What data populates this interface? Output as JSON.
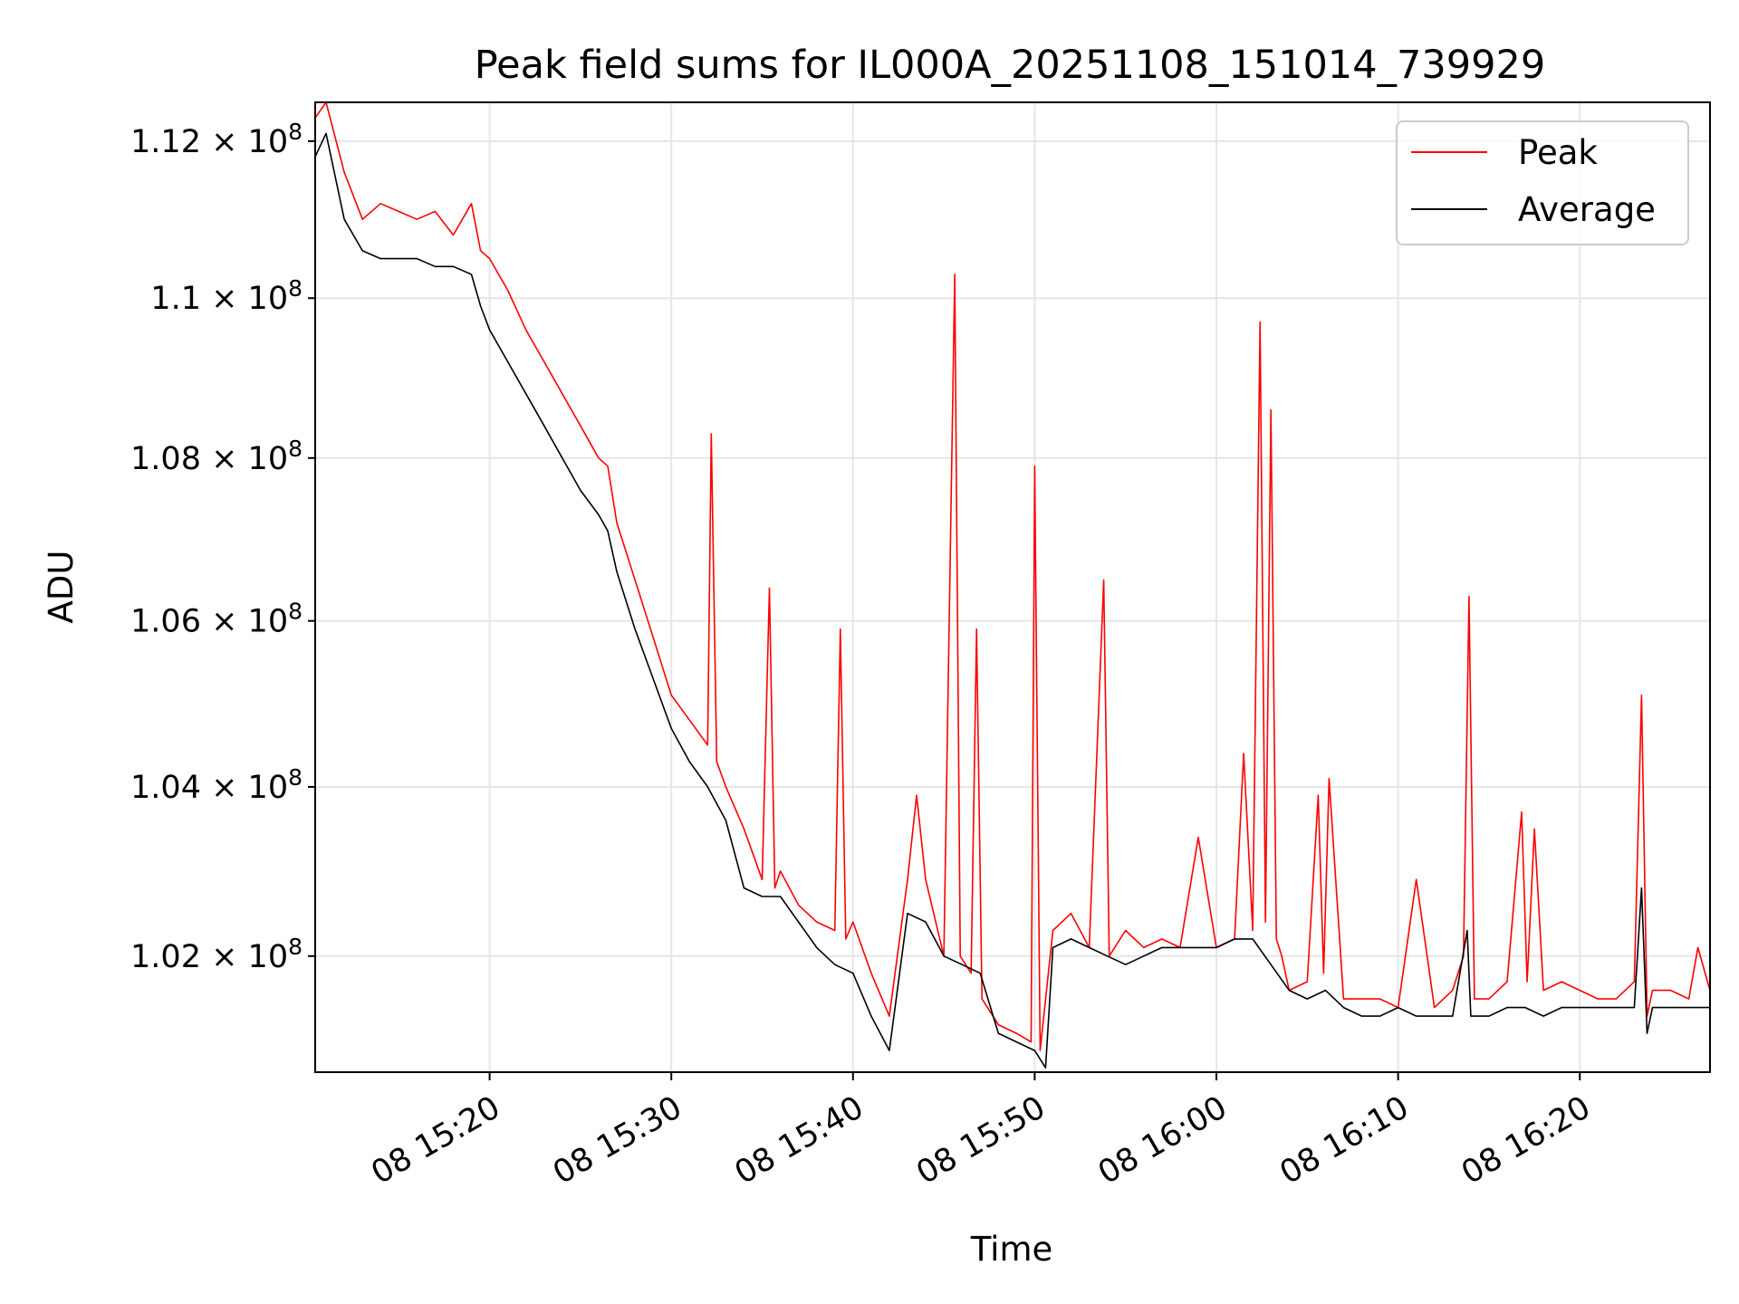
{
  "chart_data": {
    "type": "line",
    "title": "Peak field sums for IL000A_20251108_151014_739929",
    "xlabel": "Time",
    "ylabel": "ADU",
    "y_scale": "log",
    "grid": true,
    "legend_position": "top-right",
    "xlim": [
      "08 15:10:24",
      "08 16:27:10"
    ],
    "ylim": [
      100650000,
      112500000
    ],
    "x_ticks": [
      "08 15:20",
      "08 15:30",
      "08 15:40",
      "08 15:50",
      "08 16:00",
      "08 16:10",
      "08 16:20"
    ],
    "y_ticks": [
      {
        "value": 112000000,
        "mantissa": "1.12",
        "base": "10",
        "exp": "8"
      },
      {
        "value": 110000000,
        "mantissa": "1.1",
        "base": "10",
        "exp": "8"
      },
      {
        "value": 108000000,
        "mantissa": "1.08",
        "base": "10",
        "exp": "8"
      },
      {
        "value": 106000000,
        "mantissa": "1.06",
        "base": "10",
        "exp": "8"
      },
      {
        "value": 104000000,
        "mantissa": "1.04",
        "base": "10",
        "exp": "8"
      },
      {
        "value": 102000000,
        "mantissa": "1.02",
        "base": "10",
        "exp": "8"
      }
    ],
    "series": [
      {
        "name": "Peak",
        "color": "#ff0000",
        "x": [
          "08 15:10:24",
          "08 15:11:00",
          "08 15:12:00",
          "08 15:13:00",
          "08 15:14:00",
          "08 15:15:00",
          "08 15:16:00",
          "08 15:17:00",
          "08 15:18:00",
          "08 15:19:00",
          "08 15:19:30",
          "08 15:20:00",
          "08 15:21:00",
          "08 15:22:00",
          "08 15:23:00",
          "08 15:24:00",
          "08 15:25:00",
          "08 15:26:00",
          "08 15:26:30",
          "08 15:27:00",
          "08 15:28:00",
          "08 15:29:00",
          "08 15:30:00",
          "08 15:31:00",
          "08 15:32:00",
          "08 15:32:12",
          "08 15:32:30",
          "08 15:33:00",
          "08 15:34:00",
          "08 15:35:00",
          "08 15:35:24",
          "08 15:35:42",
          "08 15:36:00",
          "08 15:37:00",
          "08 15:38:00",
          "08 15:39:00",
          "08 15:39:18",
          "08 15:39:36",
          "08 15:40:00",
          "08 15:41:00",
          "08 15:42:00",
          "08 15:43:00",
          "08 15:43:30",
          "08 15:44:00",
          "08 15:45:00",
          "08 15:45:36",
          "08 15:45:54",
          "08 15:46:30",
          "08 15:46:48",
          "08 15:47:06",
          "08 15:48:00",
          "08 15:49:00",
          "08 15:49:48",
          "08 15:50:00",
          "08 15:50:18",
          "08 15:51:00",
          "08 15:52:00",
          "08 15:53:00",
          "08 15:53:48",
          "08 15:54:06",
          "08 15:55:00",
          "08 15:56:00",
          "08 15:57:00",
          "08 15:58:00",
          "08 15:59:00",
          "08 16:00:00",
          "08 16:01:00",
          "08 16:01:30",
          "08 16:02:00",
          "08 16:02:24",
          "08 16:02:42",
          "08 16:03:00",
          "08 16:03:18",
          "08 16:03:36",
          "08 16:04:00",
          "08 16:05:00",
          "08 16:05:36",
          "08 16:05:54",
          "08 16:06:12",
          "08 16:07:00",
          "08 16:08:00",
          "08 16:09:00",
          "08 16:10:00",
          "08 16:11:00",
          "08 16:12:00",
          "08 16:13:00",
          "08 16:13:36",
          "08 16:13:54",
          "08 16:14:12",
          "08 16:15:00",
          "08 16:16:00",
          "08 16:16:48",
          "08 16:17:06",
          "08 16:17:30",
          "08 16:18:00",
          "08 16:19:00",
          "08 16:20:00",
          "08 16:21:00",
          "08 16:22:00",
          "08 16:23:00",
          "08 16:23:24",
          "08 16:23:42",
          "08 16:24:00",
          "08 16:25:00",
          "08 16:26:00",
          "08 16:26:30",
          "08 16:27:10"
        ],
        "values": [
          112300000,
          112500000,
          111600000,
          111000000,
          111200000,
          111100000,
          111000000,
          111100000,
          110800000,
          111200000,
          110600000,
          110500000,
          110100000,
          109600000,
          109200000,
          108800000,
          108400000,
          108000000,
          107900000,
          107200000,
          106500000,
          105800000,
          105100000,
          104800000,
          104500000,
          108300000,
          104300000,
          104000000,
          103500000,
          102900000,
          106400000,
          102800000,
          103000000,
          102600000,
          102400000,
          102300000,
          105900000,
          102200000,
          102400000,
          101800000,
          101300000,
          102900000,
          103900000,
          102900000,
          102000000,
          110300000,
          102000000,
          101800000,
          105900000,
          101500000,
          101200000,
          101100000,
          101000000,
          107900000,
          100900000,
          102300000,
          102500000,
          102100000,
          106500000,
          102000000,
          102300000,
          102100000,
          102200000,
          102100000,
          103400000,
          102100000,
          102200000,
          104400000,
          102300000,
          109700000,
          102400000,
          108600000,
          102200000,
          102000000,
          101600000,
          101700000,
          103900000,
          101800000,
          104100000,
          101500000,
          101500000,
          101500000,
          101400000,
          102900000,
          101400000,
          101600000,
          102000000,
          106300000,
          101500000,
          101500000,
          101700000,
          103700000,
          101700000,
          103500000,
          101600000,
          101700000,
          101600000,
          101500000,
          101500000,
          101700000,
          105100000,
          101300000,
          101600000,
          101600000,
          101500000,
          102100000,
          101600000
        ]
      },
      {
        "name": "Average",
        "color": "#000000",
        "x": [
          "08 15:10:24",
          "08 15:11:00",
          "08 15:12:00",
          "08 15:13:00",
          "08 15:14:00",
          "08 15:15:00",
          "08 15:16:00",
          "08 15:17:00",
          "08 15:18:00",
          "08 15:19:00",
          "08 15:19:30",
          "08 15:20:00",
          "08 15:21:00",
          "08 15:22:00",
          "08 15:23:00",
          "08 15:24:00",
          "08 15:25:00",
          "08 15:26:00",
          "08 15:26:30",
          "08 15:27:00",
          "08 15:28:00",
          "08 15:29:00",
          "08 15:30:00",
          "08 15:31:00",
          "08 15:32:00",
          "08 15:33:00",
          "08 15:34:00",
          "08 15:35:00",
          "08 15:36:00",
          "08 15:37:00",
          "08 15:38:00",
          "08 15:39:00",
          "08 15:40:00",
          "08 15:41:00",
          "08 15:42:00",
          "08 15:43:00",
          "08 15:44:00",
          "08 15:45:00",
          "08 15:46:00",
          "08 15:47:00",
          "08 15:48:00",
          "08 15:49:00",
          "08 15:50:00",
          "08 15:50:36",
          "08 15:51:00",
          "08 15:52:00",
          "08 15:53:00",
          "08 15:54:00",
          "08 15:55:00",
          "08 15:56:00",
          "08 15:57:00",
          "08 15:58:00",
          "08 15:59:00",
          "08 16:00:00",
          "08 16:01:00",
          "08 16:02:00",
          "08 16:03:00",
          "08 16:04:00",
          "08 16:05:00",
          "08 16:06:00",
          "08 16:07:00",
          "08 16:08:00",
          "08 16:09:00",
          "08 16:10:00",
          "08 16:11:00",
          "08 16:12:00",
          "08 16:13:00",
          "08 16:13:48",
          "08 16:14:00",
          "08 16:15:00",
          "08 16:16:00",
          "08 16:17:00",
          "08 16:18:00",
          "08 16:19:00",
          "08 16:20:00",
          "08 16:21:00",
          "08 16:22:00",
          "08 16:23:00",
          "08 16:23:24",
          "08 16:23:42",
          "08 16:24:00",
          "08 16:25:00",
          "08 16:26:00",
          "08 16:27:10"
        ],
        "values": [
          111800000,
          112100000,
          111000000,
          110600000,
          110500000,
          110500000,
          110500000,
          110400000,
          110400000,
          110300000,
          109900000,
          109600000,
          109200000,
          108800000,
          108400000,
          108000000,
          107600000,
          107300000,
          107100000,
          106600000,
          105900000,
          105300000,
          104700000,
          104300000,
          104000000,
          103600000,
          102800000,
          102700000,
          102700000,
          102400000,
          102100000,
          101900000,
          101800000,
          101300000,
          100900000,
          102500000,
          102400000,
          102000000,
          101900000,
          101800000,
          101100000,
          101000000,
          100900000,
          100700000,
          102100000,
          102200000,
          102100000,
          102000000,
          101900000,
          102000000,
          102100000,
          102100000,
          102100000,
          102100000,
          102200000,
          102200000,
          101900000,
          101600000,
          101500000,
          101600000,
          101400000,
          101300000,
          101300000,
          101400000,
          101300000,
          101300000,
          101300000,
          102300000,
          101300000,
          101300000,
          101400000,
          101400000,
          101300000,
          101400000,
          101400000,
          101400000,
          101400000,
          101400000,
          102800000,
          101100000,
          101400000,
          101400000,
          101400000,
          101400000
        ]
      }
    ]
  }
}
